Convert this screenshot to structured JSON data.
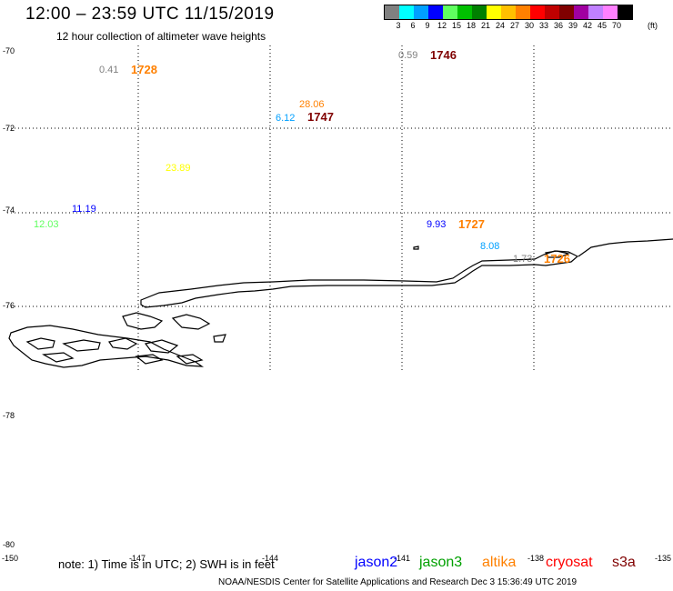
{
  "header": {
    "title": "12:00 – 23:59 UTC 11/15/2019",
    "subtitle": "12 hour collection of altimeter wave heights"
  },
  "legend": {
    "colors": [
      "#808080",
      "#00ffff",
      "#00a0ff",
      "#0000ff",
      "#60ff60",
      "#00c000",
      "#008000",
      "#ffff00",
      "#ffc000",
      "#ff8000",
      "#ff0000",
      "#c00000",
      "#800000",
      "#a000a0",
      "#c080ff",
      "#ff80ff",
      "#000000"
    ],
    "labels": [
      "3",
      "6",
      "9",
      "12",
      "15",
      "18",
      "21",
      "24",
      "27",
      "30",
      "33",
      "36",
      "39",
      "42",
      "45",
      "70"
    ],
    "unit": "(ft)"
  },
  "axes": {
    "lat_labels": [
      "-70",
      "-72",
      "-74",
      "-76",
      "-78",
      "-80"
    ],
    "lon_labels": [
      "-150",
      "-147",
      "-144",
      "-141",
      "-138",
      "-135"
    ]
  },
  "observations": [
    {
      "wave": "0.41",
      "time": "1728",
      "wave_color": "#808080",
      "time_color": "#ff8000"
    },
    {
      "wave": "0.59",
      "time": "1746",
      "wave_color": "#808080",
      "time_color": "#800000"
    },
    {
      "wave": "28.06",
      "wave_color": "#ff8000"
    },
    {
      "wave": "6.12",
      "time": "1747",
      "wave_color": "#00a0ff",
      "time_color": "#800000"
    },
    {
      "wave": "23.89",
      "wave_color": "#ffff00"
    },
    {
      "wave": "11.19",
      "wave_color": "#0000ff"
    },
    {
      "wave": "12.03",
      "wave_color": "#60ff60"
    },
    {
      "wave": "9.93",
      "time": "1727",
      "wave_color": "#0000ff",
      "time_color": "#ff8000"
    },
    {
      "wave": "8.08",
      "wave_color": "#00a0ff"
    },
    {
      "wave": "1.73",
      "time": "1726",
      "wave_color": "#808080",
      "time_color": "#ff8000"
    }
  ],
  "footer": {
    "note": "note: 1) Time is in UTC; 2) SWH is in feet",
    "satellites": [
      {
        "name": "jason2",
        "color": "#0000ff"
      },
      {
        "name": "jason3",
        "color": "#00a000"
      },
      {
        "name": "altika",
        "color": "#ff8000"
      },
      {
        "name": "cryosat",
        "color": "#ff0000"
      },
      {
        "name": "s3a",
        "color": "#800000"
      }
    ],
    "credit": "NOAA/NESDIS Center for Satellite Applications and Research     Dec  3 15:36:49 UTC 2019"
  }
}
